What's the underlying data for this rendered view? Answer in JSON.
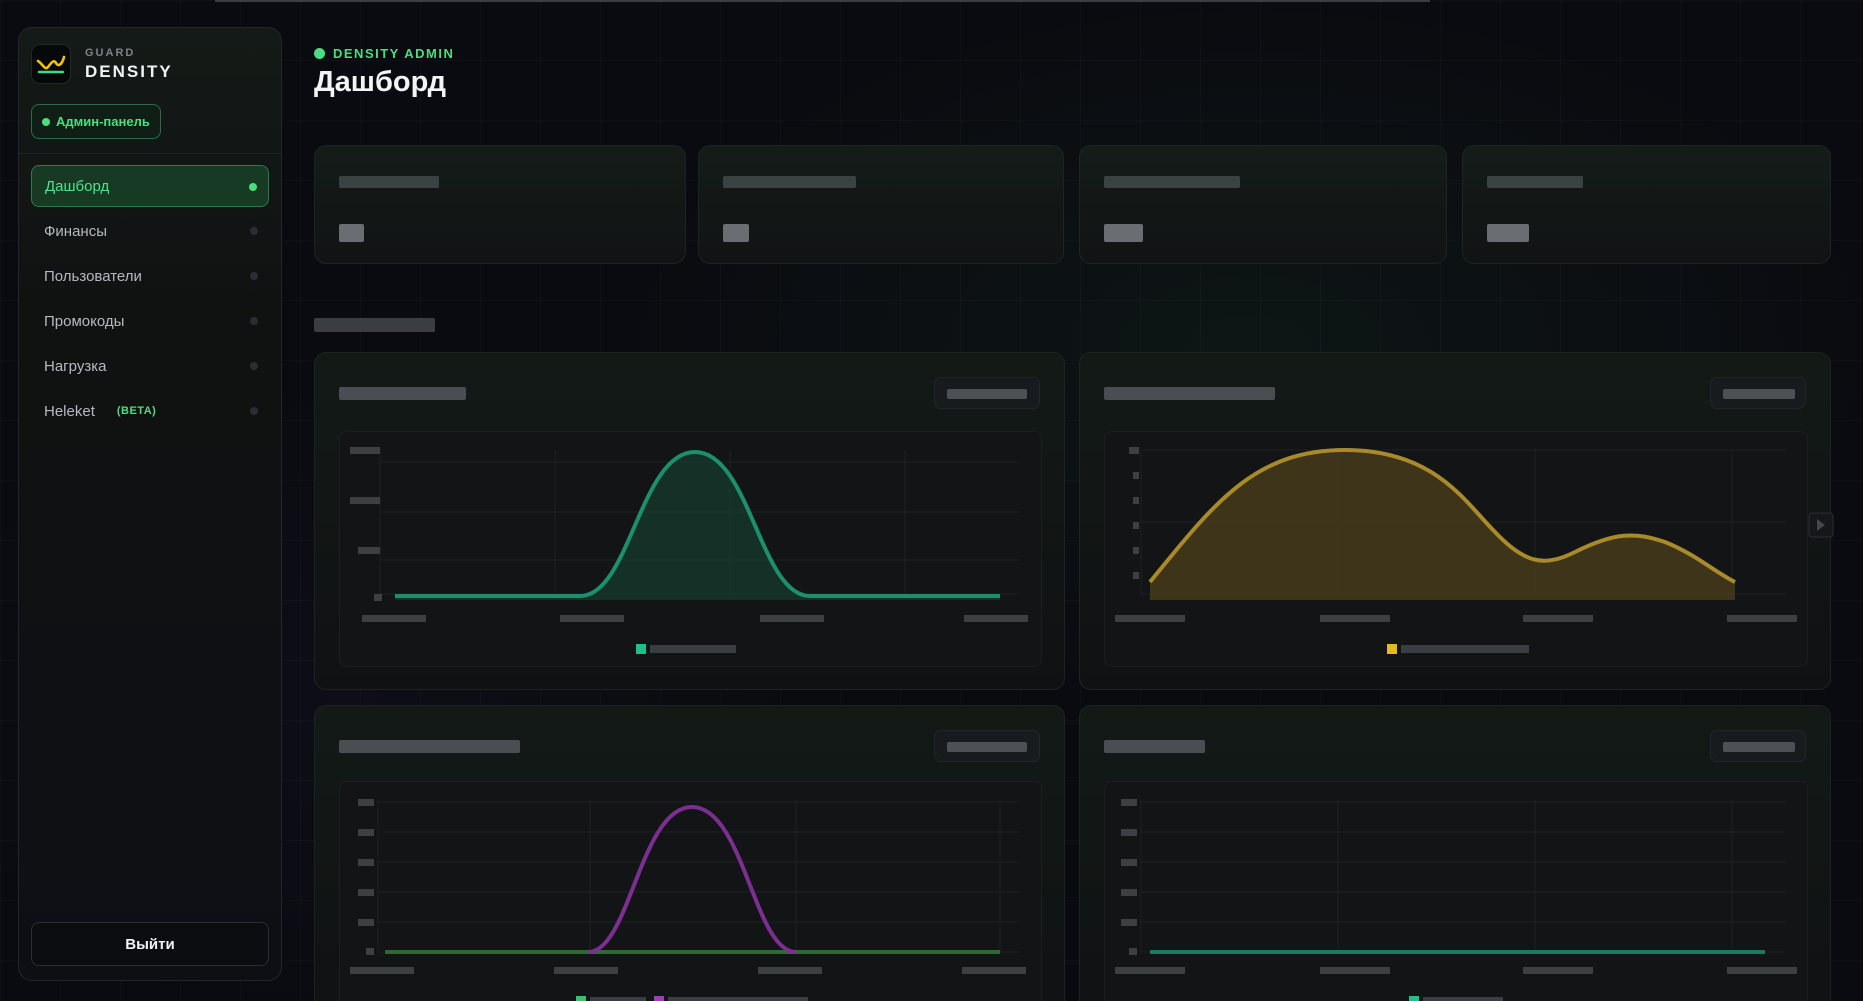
{
  "brand": {
    "small": "GUARD",
    "name": "DENSITY",
    "badge": "Админ-панель"
  },
  "nav": [
    {
      "label": "Дашборд",
      "active": true
    },
    {
      "label": "Финансы",
      "active": false
    },
    {
      "label": "Пользователи",
      "active": false
    },
    {
      "label": "Промокоды",
      "active": false
    },
    {
      "label": "Нагрузка",
      "active": false
    },
    {
      "label": "Heleket",
      "badge": "(BETA)",
      "active": false
    }
  ],
  "logout_label": "Выйти",
  "header": {
    "eyebrow": "DENSITY ADMIN",
    "title": "Дашборд"
  },
  "colors": {
    "accent": "#4ade80",
    "teal": "#1f9e78",
    "gold": "#b0902a",
    "purple": "#8e3aa0"
  },
  "stats": [
    {},
    {},
    {},
    {}
  ],
  "charts": [
    {},
    {},
    {},
    {}
  ]
}
